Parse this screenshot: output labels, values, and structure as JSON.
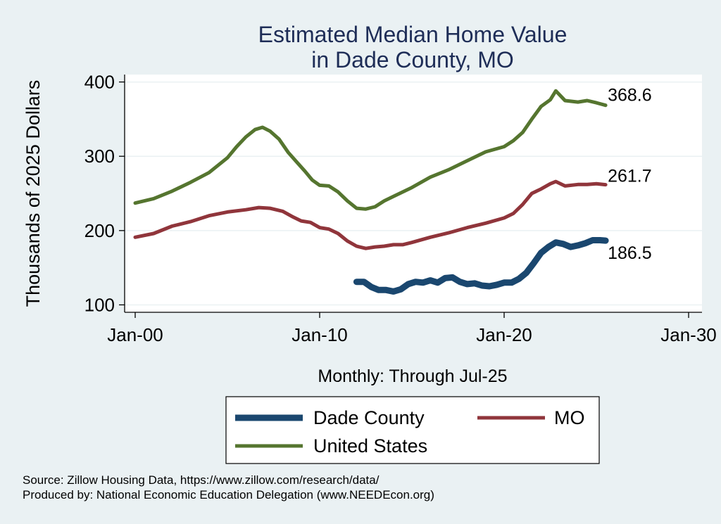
{
  "chart_data": {
    "type": "line",
    "title": [
      "Estimated Median Home Value",
      "in Dade County, MO"
    ],
    "ylabel": "Thousands of 2025 Dollars",
    "xlabel": "Monthly: Through Jul-25",
    "ylim": [
      90,
      410
    ],
    "yticks": [
      100,
      200,
      300,
      400
    ],
    "xticks": [
      {
        "value": 2000,
        "label": "Jan-00"
      },
      {
        "value": 2010,
        "label": "Jan-10"
      },
      {
        "value": 2020,
        "label": "Jan-20"
      },
      {
        "value": 2030,
        "label": "Jan-30"
      }
    ],
    "xlim": [
      1999.4,
      2030
    ],
    "grid": "horizontal",
    "legend_position": "bottom",
    "series": [
      {
        "name": "Dade County",
        "color": "#1a476f",
        "x": [
          2012.0,
          2012.4,
          2012.8,
          2013.2,
          2013.6,
          2014.0,
          2014.4,
          2014.8,
          2015.2,
          2015.6,
          2016.0,
          2016.4,
          2016.8,
          2017.2,
          2017.6,
          2018.0,
          2018.4,
          2018.8,
          2019.2,
          2019.6,
          2020.0,
          2020.4,
          2020.8,
          2021.2,
          2021.6,
          2022.0,
          2022.4,
          2022.8,
          2023.2,
          2023.6,
          2024.0,
          2024.4,
          2024.8,
          2025.2,
          2025.5
        ],
        "y": [
          131,
          131,
          124,
          120,
          120,
          118,
          121,
          128,
          131,
          130,
          133,
          130,
          136,
          137,
          131,
          128,
          129,
          126,
          125,
          127,
          130,
          130,
          135,
          143,
          156,
          170,
          178,
          184,
          182,
          178,
          180,
          183,
          187,
          187,
          186.5
        ]
      },
      {
        "name": "MO",
        "color": "#90353b",
        "x": [
          2000.0,
          2001.0,
          2002.0,
          2003.0,
          2004.0,
          2005.0,
          2006.0,
          2006.7,
          2007.3,
          2008.0,
          2008.5,
          2009.0,
          2009.5,
          2010.0,
          2010.5,
          2011.0,
          2011.5,
          2012.0,
          2012.5,
          2013.0,
          2013.5,
          2014.0,
          2014.5,
          2015.0,
          2016.0,
          2017.0,
          2018.0,
          2019.0,
          2020.0,
          2020.5,
          2021.0,
          2021.5,
          2022.0,
          2022.5,
          2022.8,
          2023.3,
          2024.0,
          2024.5,
          2025.0,
          2025.5
        ],
        "y": [
          191,
          196,
          206,
          212,
          220,
          225,
          228,
          231,
          230,
          226,
          219,
          213,
          211,
          204,
          202,
          196,
          186,
          179,
          176,
          178,
          179,
          181,
          181,
          184,
          191,
          197,
          204,
          210,
          217,
          223,
          235,
          250,
          256,
          263,
          266,
          260,
          262,
          262,
          263,
          261.7
        ]
      },
      {
        "name": "United States",
        "color": "#55752f",
        "x": [
          2000.0,
          2001.0,
          2002.0,
          2003.0,
          2004.0,
          2005.0,
          2005.5,
          2006.0,
          2006.5,
          2006.9,
          2007.3,
          2007.8,
          2008.3,
          2008.8,
          2009.2,
          2009.6,
          2010.0,
          2010.5,
          2011.0,
          2011.5,
          2012.0,
          2012.5,
          2013.0,
          2013.5,
          2014.0,
          2015.0,
          2016.0,
          2017.0,
          2018.0,
          2019.0,
          2020.0,
          2020.5,
          2021.0,
          2021.5,
          2022.0,
          2022.5,
          2022.8,
          2023.3,
          2024.0,
          2024.5,
          2025.0,
          2025.5
        ],
        "y": [
          237,
          243,
          253,
          265,
          278,
          298,
          313,
          326,
          336,
          339,
          334,
          323,
          305,
          291,
          280,
          268,
          261,
          260,
          252,
          240,
          230,
          229,
          232,
          240,
          246,
          258,
          272,
          282,
          294,
          306,
          313,
          321,
          332,
          350,
          367,
          376,
          388,
          375,
          373,
          375,
          372,
          368.6
        ]
      }
    ],
    "end_labels": [
      "368.6",
      "261.7",
      "186.5"
    ]
  },
  "footer": {
    "source": "Source: Zillow Housing Data, https://www.zillow.com/research/data/",
    "producer": "Produced by: National Economic Education Delegation (www.NEEDEcon.org)"
  }
}
